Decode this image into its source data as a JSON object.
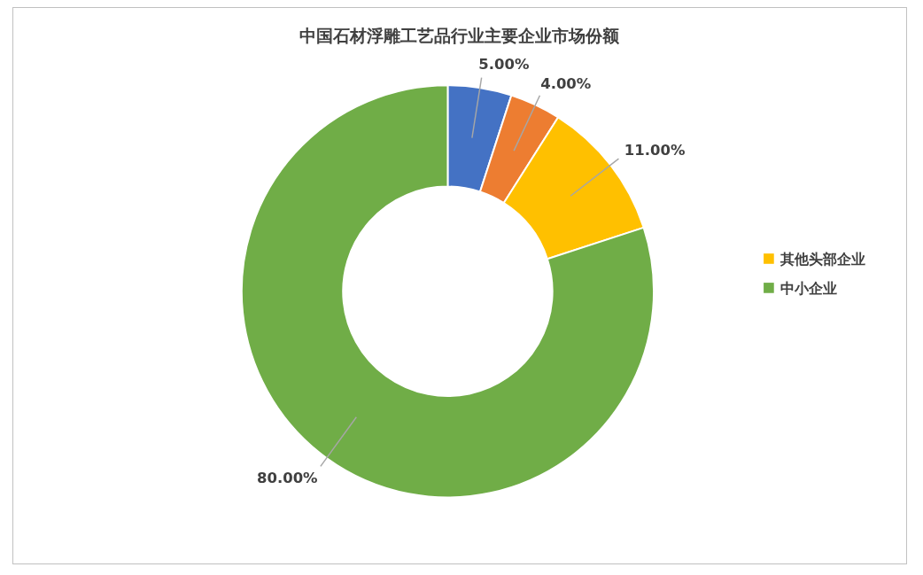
{
  "chart_data": {
    "type": "donut",
    "title": "中国石材浮雕工艺品行业主要企业市场份额",
    "categories": [
      null,
      null,
      "其他头部企业",
      "中小企业"
    ],
    "values": [
      5,
      4,
      11,
      80
    ],
    "colors": [
      "#4472c4",
      "#ed7d31",
      "#ffc000",
      "#70ad47"
    ],
    "value_labels": [
      "5.00%",
      "4.00%",
      "11.00%",
      "80.00%"
    ],
    "legend": "right"
  }
}
